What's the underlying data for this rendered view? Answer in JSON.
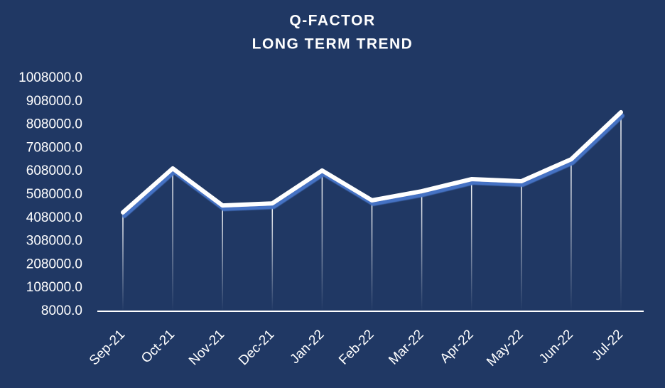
{
  "chart_data": {
    "type": "line",
    "title": "Q-FACTOR",
    "subtitle": "LONG TERM TREND",
    "categories": [
      "Sep-21",
      "Oct-21",
      "Nov-21",
      "Dec-21",
      "Jan-22",
      "Feb-22",
      "Mar-22",
      "Apr-22",
      "May-22",
      "Jun-22",
      "Jul-22"
    ],
    "series": [
      {
        "name": "Q-Factor",
        "color": "#ffffff",
        "values": [
          432000,
          621000,
          462000,
          471000,
          612000,
          484000,
          523000,
          575000,
          566000,
          660000,
          862000
        ]
      }
    ],
    "ylim": [
      8000,
      1008000
    ],
    "yticks": [
      {
        "value": 8000,
        "label": "8000.0"
      },
      {
        "value": 108000,
        "label": "108000.0"
      },
      {
        "value": 208000,
        "label": "208000.0"
      },
      {
        "value": 308000,
        "label": "308000.0"
      },
      {
        "value": 408000,
        "label": "408000.0"
      },
      {
        "value": 508000,
        "label": "508000.0"
      },
      {
        "value": 608000,
        "label": "608000.0"
      },
      {
        "value": 708000,
        "label": "708000.0"
      },
      {
        "value": 808000,
        "label": "808000.0"
      },
      {
        "value": 908000,
        "label": "908000.0"
      },
      {
        "value": 1008000,
        "label": "1008000.0"
      }
    ],
    "grid": false,
    "drop_lines": true
  }
}
